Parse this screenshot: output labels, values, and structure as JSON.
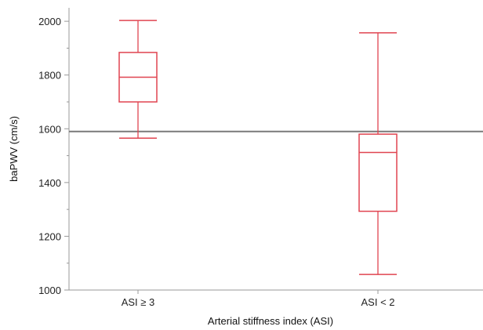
{
  "chart_data": {
    "type": "boxplot",
    "xlabel": "Arterial stiffness index (ASI)",
    "ylabel": "baPWV (cm/s)",
    "ylim": [
      1000,
      2050
    ],
    "yticks": [
      1000,
      1200,
      1400,
      1600,
      1800,
      2000
    ],
    "grid": false,
    "categories": [
      "ASI ≥ 3",
      "ASI < 2"
    ],
    "boxes": [
      {
        "category": "ASI ≥ 3",
        "min": 1565,
        "q1": 1700,
        "median": 1792,
        "q3": 1884,
        "max": 2003
      },
      {
        "category": "ASI < 2",
        "min": 1058,
        "q1": 1293,
        "median": 1512,
        "q3": 1580,
        "max": 1957
      }
    ],
    "reference_line": {
      "value": 1590
    },
    "colors": {
      "box": "#e04450",
      "reference_line": "#7a7a7a",
      "axis": "#999999"
    }
  }
}
